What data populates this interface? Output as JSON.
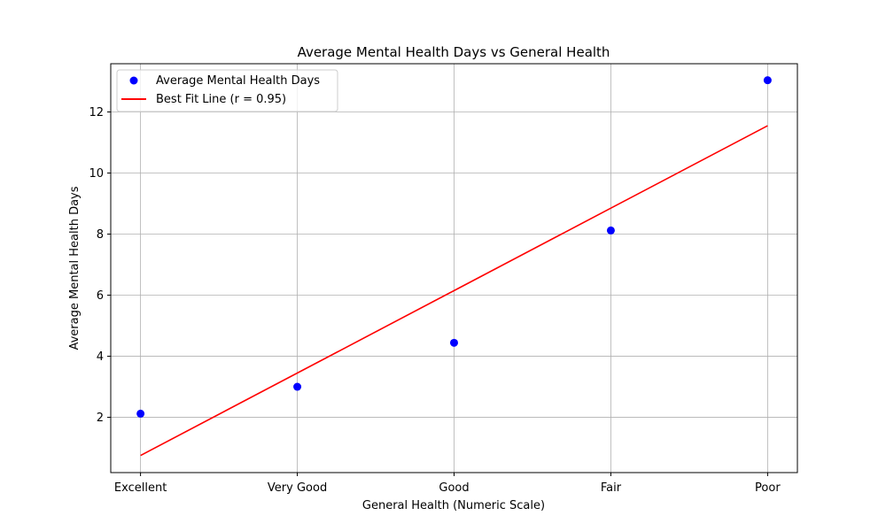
{
  "chart_data": {
    "type": "scatter",
    "title": "Average Mental Health Days vs General Health",
    "xlabel": "General Health (Numeric Scale)",
    "ylabel": "Average Mental Health Days",
    "categories": [
      "Excellent",
      "Very Good",
      "Good",
      "Fair",
      "Poor"
    ],
    "x": [
      1,
      2,
      3,
      4,
      5
    ],
    "xlim": [
      0.81,
      5.19
    ],
    "ylim": [
      0.19,
      13.58
    ],
    "yticks": [
      2,
      4,
      6,
      8,
      10,
      12
    ],
    "grid": true,
    "legend": "top-left",
    "series": [
      {
        "name": "Average Mental Health Days",
        "kind": "scatter",
        "color": "#0000ff",
        "values": [
          2.12,
          3.0,
          4.44,
          8.12,
          13.04
        ]
      },
      {
        "name": "Best Fit Line (r = 0.95)",
        "kind": "line",
        "color": "#ff0000",
        "values": [
          0.75,
          3.45,
          6.15,
          8.85,
          11.55
        ]
      }
    ]
  }
}
